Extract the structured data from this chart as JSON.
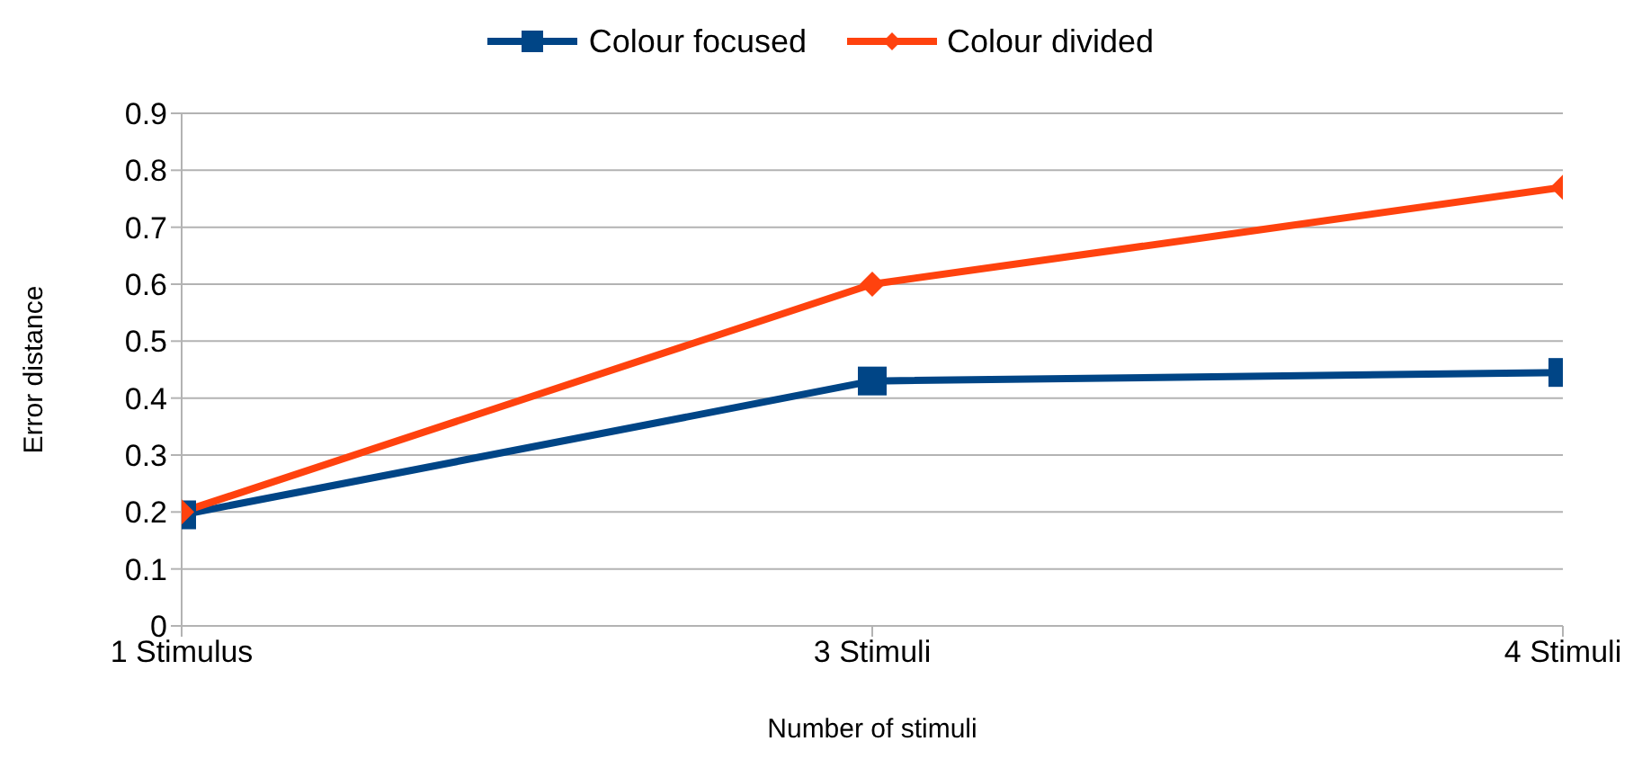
{
  "chart_data": {
    "type": "line",
    "xlabel": "Number of stimuli",
    "ylabel": "Error distance",
    "categories": [
      "1 Stimulus",
      "3 Stimuli",
      "4 Stimuli"
    ],
    "series": [
      {
        "name": "Colour focused",
        "color": "#004586",
        "marker": "square",
        "values": [
          0.195,
          0.43,
          0.445
        ]
      },
      {
        "name": "Colour divided",
        "color": "#ff420e",
        "marker": "diamond",
        "values": [
          0.2,
          0.6,
          0.77
        ]
      }
    ],
    "ylim": [
      0,
      0.9
    ],
    "yticks": [
      0,
      0.1,
      0.2,
      0.3,
      0.4,
      0.5,
      0.6,
      0.7,
      0.8,
      0.9
    ],
    "grid": "y",
    "legend": "top"
  }
}
